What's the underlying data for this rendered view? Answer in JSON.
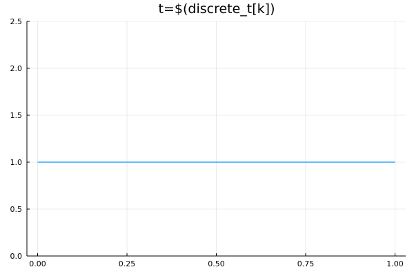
{
  "chart_data": {
    "type": "line",
    "title": "t=$(discrete_t[k])",
    "xlabel": "",
    "ylabel": "",
    "xlim": [
      -0.03,
      1.03
    ],
    "ylim": [
      0,
      2.5
    ],
    "xticks": [
      "0.00",
      "0.25",
      "0.50",
      "0.75",
      "1.00"
    ],
    "yticks": [
      "0.0",
      "0.5",
      "1.0",
      "1.5",
      "2.0",
      "2.5"
    ],
    "grid": true,
    "legend": "none",
    "series": [
      {
        "x": [
          0.0,
          1.0
        ],
        "y": [
          1.0,
          1.0
        ],
        "color": "#009AFA"
      }
    ]
  }
}
